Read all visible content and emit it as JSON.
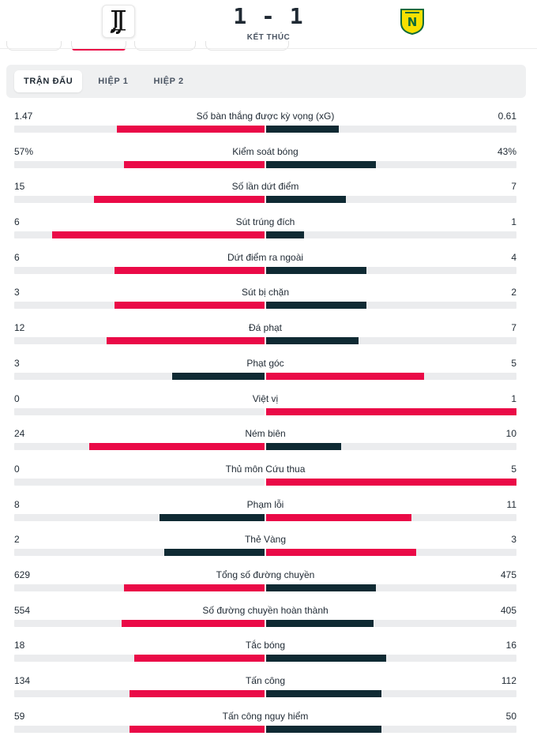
{
  "match": {
    "score": "1 - 1",
    "status": "KẾT THÚC",
    "home_logo_icon": "juventus-logo-icon",
    "away_logo_icon": "nantes-logo-icon"
  },
  "tabs": [
    {
      "label": "TRẬN ĐẤU",
      "active": true
    },
    {
      "label": "HIỆP 1",
      "active": false
    },
    {
      "label": "HIỆP 2",
      "active": false
    }
  ],
  "colors": {
    "winner": "#ea0a47",
    "loser": "#0f2a33",
    "track": "#ebecee"
  },
  "stats": [
    {
      "name": "Số bàn thắng được kỳ vọng (xG)",
      "home": "1.47",
      "away": "0.61",
      "home_share": 0.59,
      "away_share": 0.29
    },
    {
      "name": "Kiểm soát bóng",
      "home": "57%",
      "away": "43%",
      "home_share": 0.56,
      "away_share": 0.44
    },
    {
      "name": "Số lần dứt điểm",
      "home": "15",
      "away": "7",
      "home_share": 0.68,
      "away_share": 0.32
    },
    {
      "name": "Sút trúng đích",
      "home": "6",
      "away": "1",
      "home_share": 0.85,
      "away_share": 0.15
    },
    {
      "name": "Dứt điểm ra ngoài",
      "home": "6",
      "away": "4",
      "home_share": 0.6,
      "away_share": 0.4
    },
    {
      "name": "Sút bị chặn",
      "home": "3",
      "away": "2",
      "home_share": 0.6,
      "away_share": 0.4
    },
    {
      "name": "Đá phạt",
      "home": "12",
      "away": "7",
      "home_share": 0.63,
      "away_share": 0.37
    },
    {
      "name": "Phạt góc",
      "home": "3",
      "away": "5",
      "home_share": 0.37,
      "away_share": 0.63
    },
    {
      "name": "Việt vị",
      "home": "0",
      "away": "1",
      "home_share": 0.0,
      "away_share": 1.0
    },
    {
      "name": "Ném biên",
      "home": "24",
      "away": "10",
      "home_share": 0.7,
      "away_share": 0.3
    },
    {
      "name": "Thủ môn Cứu thua",
      "home": "0",
      "away": "5",
      "home_share": 0.0,
      "away_share": 1.0
    },
    {
      "name": "Phạm lỗi",
      "home": "8",
      "away": "11",
      "home_share": 0.42,
      "away_share": 0.58
    },
    {
      "name": "Thẻ Vàng",
      "home": "2",
      "away": "3",
      "home_share": 0.4,
      "away_share": 0.6
    },
    {
      "name": "Tổng số đường chuyền",
      "home": "629",
      "away": "475",
      "home_share": 0.56,
      "away_share": 0.44
    },
    {
      "name": "Số đường chuyền hoàn thành",
      "home": "554",
      "away": "405",
      "home_share": 0.57,
      "away_share": 0.43
    },
    {
      "name": "Tắc bóng",
      "home": "18",
      "away": "16",
      "home_share": 0.52,
      "away_share": 0.48
    },
    {
      "name": "Tấn công",
      "home": "134",
      "away": "112",
      "home_share": 0.54,
      "away_share": 0.46
    },
    {
      "name": "Tấn công nguy hiểm",
      "home": "59",
      "away": "50",
      "home_share": 0.54,
      "away_share": 0.46
    }
  ]
}
